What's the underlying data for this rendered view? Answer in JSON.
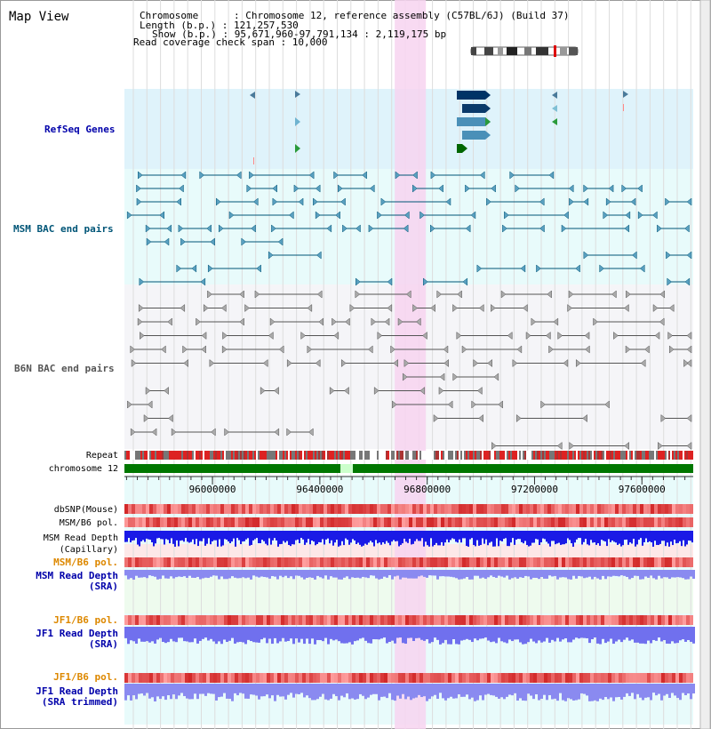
{
  "title": "Map View",
  "info": {
    "chromosome_line": "Chromosome      : Chromosome 12, reference assembly (C57BL/6J) (Build 37)",
    "length_line": "Length (b.p.) : 121,257,530",
    "show_line": "Show (b.p.) : 95,671,960-97,791,134 : 2,119,175 bp",
    "coverage_line": "Read coverage check span : 10,000"
  },
  "view": {
    "start": 95671960,
    "end": 97791134,
    "highlight_start": 96679000,
    "highlight_end": 96795000
  },
  "colors": {
    "refseq": "#0000aa",
    "msm_bac": "#005577",
    "b6n_bac": "#555555",
    "snp_orange": "#dd8800",
    "read_blue": "#0000aa",
    "highlight": "#f7d4f0",
    "chrom_green": "#007700"
  },
  "tracks": {
    "refseq_label": "RefSeq Genes",
    "msm_bac_label": "MSM BAC end pairs",
    "b6n_bac_label": "B6N BAC end pairs",
    "repeat_label": "Repeat",
    "chromosome_label": "chromosome 12",
    "dbsnp_label": "dbSNP(Mouse)",
    "msm_pol_label": "MSM/B6 pol.",
    "msm_read_cap_label1": "MSM Read Depth",
    "msm_read_cap_label2": "(Capillary)",
    "msm_pol2_label": "MSM/B6 pol.",
    "msm_read_sra_label1": "MSM Read Depth",
    "msm_read_sra_label2": "(SRA)",
    "jf1_pol_label": "JF1/B6 pol.",
    "jf1_read_sra_label1": "JF1 Read Depth",
    "jf1_read_sra_label2": "(SRA)",
    "jf1_pol2_label": "JF1/B6 pol.",
    "jf1_read_trim_label1": "JF1 Read Depth",
    "jf1_read_trim_label2": "(SRA trimmed)"
  },
  "axis": {
    "ticks": [
      {
        "pos": 96000000,
        "label": "96000000"
      },
      {
        "pos": 96400000,
        "label": "96400000"
      },
      {
        "pos": 96800000,
        "label": "96800000"
      },
      {
        "pos": 97200000,
        "label": "97200000"
      },
      {
        "pos": 97600000,
        "label": "97600000"
      }
    ]
  }
}
